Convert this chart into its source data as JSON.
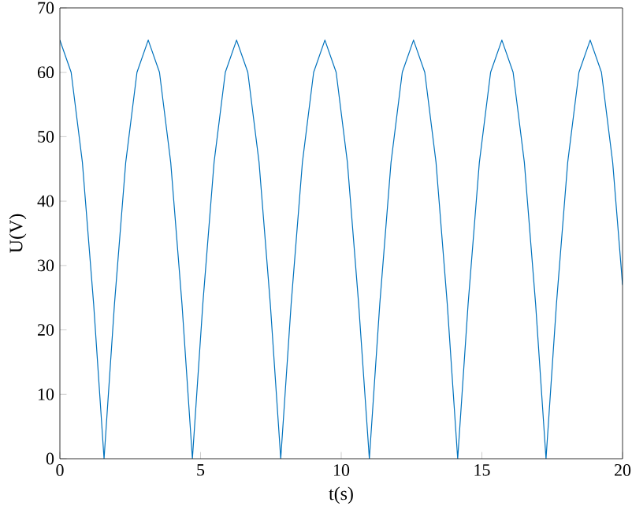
{
  "chart_data": {
    "type": "line",
    "xlabel": "t(s)",
    "ylabel": "U(V)",
    "xlim": [
      0,
      20
    ],
    "ylim": [
      0,
      70
    ],
    "xticks": [
      0,
      5,
      10,
      15,
      20
    ],
    "yticks": [
      0,
      10,
      20,
      30,
      40,
      50,
      60,
      70
    ],
    "grid": false,
    "marker": "none",
    "line_style": "solid",
    "series": [
      {
        "color": "#0072bd",
        "x": [
          0,
          0.4,
          0.8,
          1.2,
          1.57,
          1.94,
          2.34,
          2.74,
          3.14,
          3.54,
          3.94,
          4.34,
          4.71,
          5.08,
          5.48,
          5.88,
          6.28,
          6.68,
          7.08,
          7.48,
          7.85,
          8.22,
          8.62,
          9.02,
          9.42,
          9.82,
          10.22,
          10.62,
          11.0,
          11.37,
          11.77,
          12.17,
          12.57,
          12.97,
          13.37,
          13.77,
          14.14,
          14.51,
          14.91,
          15.31,
          15.71,
          16.11,
          16.51,
          16.91,
          17.28,
          17.65,
          18.05,
          18.45,
          18.85,
          19.25,
          19.65,
          20
        ],
        "values": [
          65,
          60,
          46,
          24,
          0,
          24,
          46,
          60,
          65,
          60,
          46,
          24,
          0,
          24,
          46,
          60,
          65,
          60,
          46,
          24,
          0,
          24,
          46,
          60,
          65,
          60,
          46,
          24,
          0,
          24,
          46,
          60,
          65,
          60,
          46,
          24,
          0,
          24,
          46,
          60,
          65,
          60,
          46,
          24,
          0,
          24,
          46,
          60,
          65,
          60,
          46,
          27
        ]
      }
    ]
  }
}
